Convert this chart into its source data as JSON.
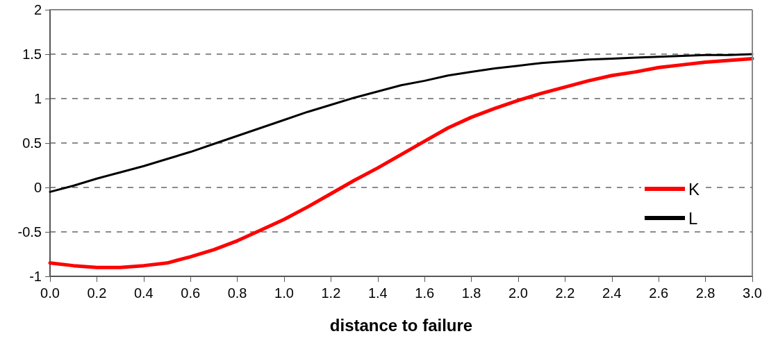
{
  "chart_data": {
    "type": "line",
    "xlabel": "distance to failure",
    "x": [
      0,
      0.1,
      0.2,
      0.3,
      0.4,
      0.5,
      0.6,
      0.7,
      0.8,
      0.9,
      1.0,
      1.1,
      1.2,
      1.3,
      1.4,
      1.5,
      1.6,
      1.7,
      1.8,
      1.9,
      2.0,
      2.1,
      2.2,
      2.3,
      2.4,
      2.5,
      2.6,
      2.7,
      2.8,
      2.9,
      3.0
    ],
    "series": [
      {
        "name": "K",
        "color": "#ff0000",
        "values": [
          -0.85,
          -0.88,
          -0.9,
          -0.9,
          -0.88,
          -0.85,
          -0.78,
          -0.7,
          -0.6,
          -0.48,
          -0.36,
          -0.22,
          -0.07,
          0.08,
          0.22,
          0.37,
          0.52,
          0.67,
          0.79,
          0.89,
          0.98,
          1.06,
          1.13,
          1.2,
          1.26,
          1.3,
          1.35,
          1.38,
          1.41,
          1.43,
          1.45
        ]
      },
      {
        "name": "L",
        "color": "#000000",
        "values": [
          -0.05,
          0.02,
          0.1,
          0.17,
          0.24,
          0.32,
          0.4,
          0.49,
          0.58,
          0.67,
          0.76,
          0.85,
          0.93,
          1.01,
          1.08,
          1.15,
          1.2,
          1.26,
          1.3,
          1.34,
          1.37,
          1.4,
          1.42,
          1.44,
          1.45,
          1.46,
          1.47,
          1.48,
          1.49,
          1.49,
          1.5
        ]
      }
    ],
    "xlim": [
      0,
      3
    ],
    "xticks": [
      {
        "value": 0,
        "label": "0.0"
      },
      0.2,
      0.4,
      0.6,
      0.8,
      {
        "value": 1,
        "label": "1.0"
      },
      1.2,
      1.4,
      1.6,
      1.8,
      {
        "value": 2,
        "label": "2.0"
      },
      2.2,
      2.4,
      2.6,
      2.8,
      {
        "value": 3,
        "label": "3.0"
      }
    ],
    "ylim": [
      -1,
      2
    ],
    "yticks": [
      -1,
      -0.5,
      0,
      0.5,
      1,
      1.5,
      2
    ],
    "grid": "y",
    "legend": "right",
    "marker": "none",
    "line_style": "solid"
  }
}
